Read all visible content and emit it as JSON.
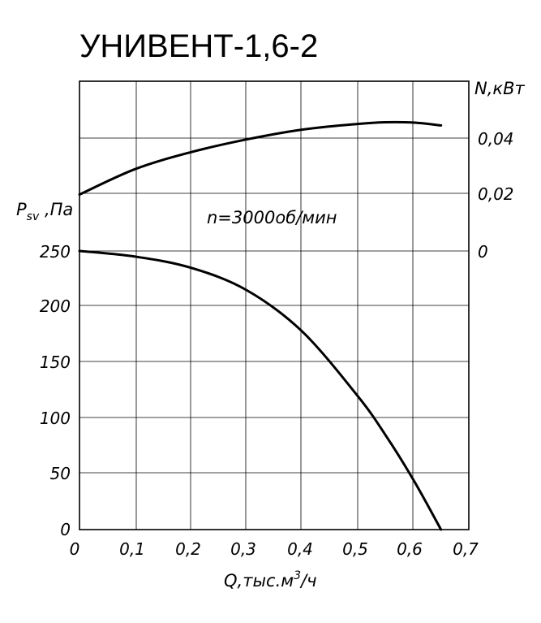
{
  "title": "УНИВЕНТ-1,6-2",
  "chart_data": {
    "type": "line",
    "title": "УНИВЕНТ-1,6-2",
    "annotation": "n=3000об/мин",
    "x_axis": {
      "label_main": "Q,тыс.м",
      "label_sup": "3",
      "label_tail": "/ч",
      "range": [
        0,
        0.7
      ],
      "ticks": [
        "0",
        "0,1",
        "0,2",
        "0,3",
        "0,4",
        "0,5",
        "0,6",
        "0,7"
      ]
    },
    "y_left_axis": {
      "label_main": "P",
      "label_sub": "sv",
      "label_tail": " ,Па",
      "range": [
        0,
        250
      ],
      "ticks": [
        "0",
        "50",
        "100",
        "150",
        "200",
        "250"
      ]
    },
    "y_right_axis": {
      "label": "N,кВт",
      "range": [
        0,
        0.06
      ],
      "ticks": [
        "0",
        "0,02",
        "0,04"
      ]
    },
    "grid": true,
    "series": [
      {
        "axis": "left",
        "color": "#000000",
        "points": [
          [
            0,
            250
          ],
          [
            0.1,
            245
          ],
          [
            0.2,
            235
          ],
          [
            0.3,
            215
          ],
          [
            0.4,
            178
          ],
          [
            0.5,
            120
          ],
          [
            0.55,
            85
          ],
          [
            0.6,
            45
          ],
          [
            0.65,
            0
          ]
        ]
      },
      {
        "axis": "right",
        "color": "#000000",
        "points": [
          [
            0,
            0.02
          ],
          [
            0.1,
            0.029
          ],
          [
            0.2,
            0.035
          ],
          [
            0.3,
            0.0395
          ],
          [
            0.4,
            0.043
          ],
          [
            0.5,
            0.045
          ],
          [
            0.55,
            0.0456
          ],
          [
            0.6,
            0.0455
          ],
          [
            0.65,
            0.0445
          ]
        ]
      }
    ]
  }
}
